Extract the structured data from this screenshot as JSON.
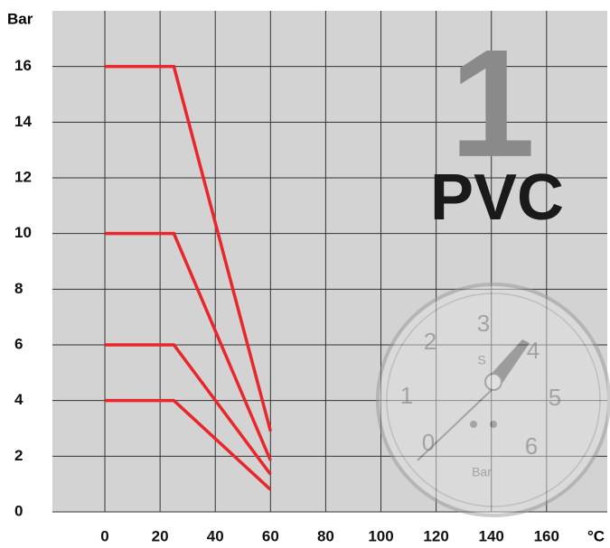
{
  "chart_data": {
    "type": "line",
    "y_label": "Bar",
    "x_label": "°C",
    "annotations": [
      "1",
      "PVC"
    ],
    "gauge_labels": [
      "0",
      "1",
      "2",
      "3",
      "4",
      "5",
      "6",
      "S",
      "Bar"
    ],
    "xlim": [
      -19,
      182
    ],
    "ylim": [
      0,
      18
    ],
    "xticks": [
      0,
      20,
      40,
      60,
      80,
      100,
      120,
      140,
      160
    ],
    "yticks": [
      0,
      2,
      4,
      6,
      8,
      10,
      12,
      14,
      16
    ],
    "grid": true,
    "series": [
      {
        "color": "#e8262b",
        "x": [
          0,
          25,
          60
        ],
        "values": [
          16,
          16,
          2.9
        ]
      },
      {
        "color": "#e8262b",
        "x": [
          0,
          25,
          60
        ],
        "values": [
          10,
          10,
          1.85
        ]
      },
      {
        "color": "#e8262b",
        "x": [
          0,
          25,
          60
        ],
        "values": [
          6,
          6,
          1.35
        ]
      },
      {
        "color": "#e8262b",
        "x": [
          0,
          25,
          60
        ],
        "values": [
          4,
          4,
          0.8
        ]
      }
    ]
  }
}
